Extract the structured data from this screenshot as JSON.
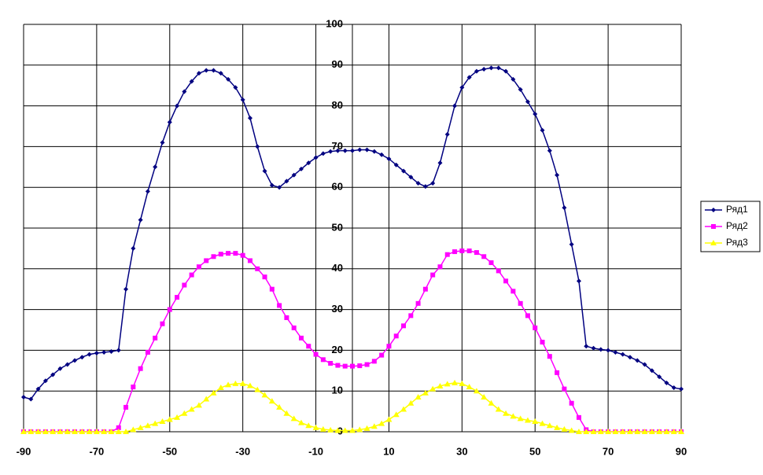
{
  "chart_data": {
    "type": "scatter",
    "x": [
      -90,
      -88,
      -86,
      -84,
      -82,
      -80,
      -78,
      -76,
      -74,
      -72,
      -70,
      -68,
      -66,
      -64,
      -62,
      -60,
      -58,
      -56,
      -54,
      -52,
      -50,
      -48,
      -46,
      -44,
      -42,
      -40,
      -38,
      -36,
      -34,
      -32,
      -30,
      -28,
      -26,
      -24,
      -22,
      -20,
      -18,
      -16,
      -14,
      -12,
      -10,
      -8,
      -6,
      -4,
      -2,
      0,
      2,
      4,
      6,
      8,
      10,
      12,
      14,
      16,
      18,
      20,
      22,
      24,
      26,
      28,
      30,
      32,
      34,
      36,
      38,
      40,
      42,
      44,
      46,
      48,
      50,
      52,
      54,
      56,
      58,
      60,
      62,
      64,
      66,
      68,
      70,
      72,
      74,
      76,
      78,
      80,
      82,
      84,
      86,
      88,
      90
    ],
    "series": [
      {
        "name": "Ряд1",
        "color": "#000080",
        "marker": "diamond",
        "values": [
          8.5,
          8,
          10.5,
          12.5,
          14,
          15.5,
          16.5,
          17.5,
          18.3,
          19,
          19.3,
          19.5,
          19.7,
          20,
          35,
          45,
          52,
          59,
          65,
          71,
          76,
          80,
          83.5,
          86,
          88,
          88.7,
          88.7,
          88,
          86.5,
          84.5,
          81.5,
          77,
          70,
          64,
          60.5,
          60,
          61.5,
          63,
          64.5,
          66,
          67.3,
          68.3,
          68.8,
          69,
          69,
          69,
          69.2,
          69.2,
          68.8,
          68,
          67,
          65.5,
          64,
          62.5,
          61,
          60.2,
          61,
          66,
          73,
          80,
          84.5,
          87,
          88.5,
          89,
          89.3,
          89.3,
          88.5,
          86.5,
          84,
          81,
          78,
          74,
          69,
          63,
          55,
          46,
          37,
          21,
          20.5,
          20.2,
          20,
          19.5,
          19,
          18.3,
          17.5,
          16.5,
          15,
          13.5,
          12,
          10.8,
          10.5
        ]
      },
      {
        "name": "Ряд2",
        "color": "#FF00FF",
        "marker": "square",
        "values": [
          0,
          0,
          0,
          0,
          0,
          0,
          0,
          0,
          0,
          0,
          0,
          0,
          0,
          1,
          6,
          11,
          15.5,
          19.5,
          23,
          26.5,
          30,
          33,
          36,
          38.5,
          40.5,
          42,
          43,
          43.6,
          43.8,
          43.8,
          43.3,
          42,
          40,
          38,
          35,
          31,
          28,
          25.5,
          23,
          21,
          19,
          17.7,
          16.8,
          16.3,
          16.1,
          16.1,
          16.2,
          16.5,
          17.3,
          18.8,
          21,
          23.5,
          26,
          28.5,
          31.5,
          35,
          38.5,
          40.5,
          43.5,
          44.2,
          44.4,
          44.4,
          44,
          43,
          41.5,
          39.5,
          37,
          34.5,
          31.5,
          28.5,
          25.5,
          22,
          18.5,
          14.5,
          10.5,
          7,
          3.5,
          0.5,
          0,
          0,
          0,
          0,
          0,
          0,
          0,
          0,
          0,
          0,
          0,
          0,
          0
        ]
      },
      {
        "name": "Ряд3",
        "color": "#FFFF00",
        "marker": "triangle",
        "values": [
          0,
          0,
          0,
          0,
          0,
          0,
          0,
          0,
          0,
          0,
          0,
          0,
          0,
          0,
          0,
          0.5,
          1,
          1.5,
          2,
          2.5,
          3,
          3.5,
          4.5,
          5.5,
          6.5,
          8,
          9.5,
          10.8,
          11.5,
          11.8,
          11.8,
          11.3,
          10.3,
          9,
          7.5,
          6,
          4.5,
          3.2,
          2.2,
          1.5,
          1,
          0.6,
          0.4,
          0.3,
          0.3,
          0.3,
          0.5,
          0.8,
          1.3,
          2,
          3,
          4.2,
          5.5,
          7,
          8.5,
          9.5,
          10.5,
          11.2,
          11.7,
          12,
          11.8,
          11,
          10,
          8.5,
          7,
          5.5,
          4.5,
          3.8,
          3.2,
          2.8,
          2.5,
          2,
          1.5,
          1,
          0.6,
          0.3,
          0,
          0,
          0,
          0,
          0,
          0,
          0,
          0,
          0,
          0,
          0,
          0,
          0,
          0,
          0
        ]
      }
    ],
    "xlim": [
      -90,
      90
    ],
    "xticks": [
      -90,
      -70,
      -50,
      -30,
      -10,
      10,
      30,
      50,
      70,
      90
    ],
    "ylim": [
      0,
      100
    ],
    "yticks": [
      0,
      10,
      20,
      30,
      40,
      50,
      60,
      70,
      80,
      90,
      100
    ],
    "grid": true,
    "legend": "right"
  }
}
